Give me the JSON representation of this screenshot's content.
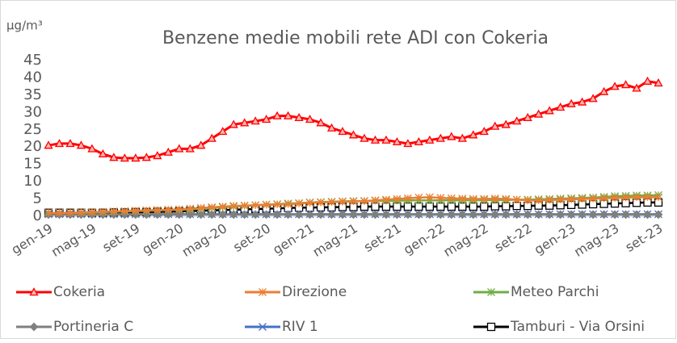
{
  "chart_data": {
    "type": "line",
    "title": "Benzene medie mobili  rete ADI con Cokeria",
    "y_label": "μg/m³",
    "categories": [
      "gen-19",
      null,
      null,
      null,
      "mag-19",
      null,
      null,
      null,
      "set-19",
      null,
      null,
      null,
      "gen-20",
      null,
      null,
      null,
      "mag-20",
      null,
      null,
      null,
      "set-20",
      null,
      null,
      null,
      "gen-21",
      null,
      null,
      null,
      "mag-21",
      null,
      null,
      null,
      "set-21",
      null,
      null,
      null,
      "gen-22",
      null,
      null,
      null,
      "mag-22",
      null,
      null,
      null,
      "set-22",
      null,
      null,
      null,
      "gen-23",
      null,
      null,
      null,
      "mag-23",
      null,
      null,
      null,
      "set-23"
    ],
    "ylim": [
      0,
      45
    ],
    "yticks": [
      0,
      5,
      10,
      15,
      20,
      25,
      30,
      35,
      40,
      45
    ],
    "grid": false,
    "series": [
      {
        "name": "Cokeria",
        "color": "#ff0000",
        "marker": "triangle",
        "values": [
          20.5,
          21,
          21,
          20.5,
          19.5,
          18,
          17,
          16.8,
          16.8,
          17,
          17.5,
          18.5,
          19.5,
          19.5,
          20.5,
          22.5,
          24.5,
          26.5,
          27,
          27.5,
          28,
          29,
          29,
          28.5,
          28,
          27,
          25.5,
          24.5,
          23.5,
          22.5,
          22,
          22,
          21.5,
          21,
          21.5,
          22,
          22.5,
          23,
          22.5,
          23.5,
          24.5,
          26,
          26.5,
          27.5,
          28.5,
          29.5,
          30.5,
          31.5,
          32.5,
          33,
          34,
          36,
          37.5,
          38,
          37,
          39,
          38.5
        ]
      },
      {
        "name": "Direzione",
        "color": "#ed7d31",
        "marker": "star",
        "values": [
          1,
          1,
          1,
          1.1,
          1.2,
          1.3,
          1.4,
          1.5,
          1.6,
          1.7,
          1.8,
          1.9,
          2,
          2.2,
          2.4,
          2.6,
          2.8,
          3,
          3.1,
          3.2,
          3.3,
          3.4,
          3.5,
          3.7,
          3.9,
          4,
          4.1,
          4.2,
          4.3,
          4.4,
          4.6,
          4.8,
          5,
          5.2,
          5.4,
          5.5,
          5.3,
          5.2,
          5.1,
          5,
          5,
          5.1,
          5,
          4.8,
          4.6,
          4.6,
          4.7,
          4.8,
          4.9,
          5,
          5.1,
          5.2,
          5.3,
          5.4,
          5.5,
          5.5,
          5.5
        ]
      },
      {
        "name": "Meteo Parchi",
        "color": "#70ad47",
        "marker": "asterisk",
        "values": [
          1,
          1,
          1,
          1,
          1.1,
          1.2,
          1.3,
          1.4,
          1.5,
          1.6,
          1.7,
          1.8,
          1.9,
          2,
          2.2,
          2.4,
          2.6,
          2.8,
          3,
          3.2,
          3.4,
          3.5,
          3.7,
          3.8,
          4,
          4.1,
          4.2,
          4.3,
          4.4,
          4.4,
          4.5,
          4.5,
          4.5,
          4.6,
          4.6,
          4.6,
          4.6,
          4.6,
          4.6,
          4.6,
          4.7,
          4.7,
          4.7,
          4.8,
          4.8,
          4.9,
          5,
          5.1,
          5.2,
          5.3,
          5.4,
          5.6,
          5.8,
          5.9,
          6,
          6,
          6.1
        ]
      },
      {
        "name": "Portineria C",
        "color": "#7f7f7f",
        "marker": "diamond",
        "values": [
          0.5,
          0.5,
          0.5,
          0.5,
          0.5,
          0.5,
          0.5,
          0.5,
          0.5,
          0.5,
          0.5,
          0.5,
          0.5,
          0.5,
          0.5,
          0.5,
          0.5,
          0.5,
          0.5,
          0.5,
          0.5,
          0.5,
          0.5,
          0.5,
          0.5,
          0.5,
          0.5,
          0.5,
          0.5,
          0.5,
          0.5,
          0.5,
          0.5,
          0.5,
          0.5,
          0.5,
          0.5,
          0.5,
          0.5,
          0.5,
          0.5,
          0.5,
          0.5,
          0.5,
          0.5,
          0.5,
          0.5,
          0.5,
          0.5,
          0.5,
          0.5,
          0.5,
          0.5,
          0.5,
          0.5,
          0.5,
          0.5
        ]
      },
      {
        "name": "RIV 1",
        "color": "#4472c4",
        "marker": "x",
        "values": [
          0.6,
          0.6,
          0.6,
          0.6,
          0.6,
          0.6,
          0.6,
          0.6,
          0.6,
          0.6,
          0.6,
          0.6,
          0.6,
          0.6,
          0.6,
          0.6,
          0.6,
          0.6,
          0.6,
          0.6,
          0.6,
          0.6,
          0.6,
          0.6,
          0.6,
          0.6,
          0.6,
          0.6,
          0.6,
          0.6,
          0.6,
          0.6,
          0.6,
          0.6,
          0.6,
          0.6,
          0.6,
          0.6,
          0.6,
          0.6,
          0.6,
          0.6,
          0.6,
          0.6,
          0.6,
          0.6,
          0.6,
          0.6,
          0.6,
          0.6,
          0.6,
          0.6,
          0.6,
          0.6,
          0.6,
          0.6,
          0.6
        ]
      },
      {
        "name": "Tamburi - Via Orsini",
        "color": "#000000",
        "marker": "square",
        "values": [
          1,
          1,
          1,
          1,
          1,
          1,
          1.1,
          1.1,
          1.2,
          1.2,
          1.3,
          1.3,
          1.4,
          1.5,
          1.6,
          1.7,
          1.8,
          1.9,
          2,
          2.1,
          2.2,
          2.3,
          2.4,
          2.5,
          2.5,
          2.6,
          2.6,
          2.7,
          2.7,
          2.8,
          2.8,
          2.8,
          2.8,
          2.8,
          2.8,
          2.8,
          2.8,
          2.8,
          2.8,
          2.8,
          2.8,
          2.9,
          2.9,
          3,
          3,
          3.1,
          3.1,
          3.2,
          3.3,
          3.4,
          3.5,
          3.6,
          3.7,
          3.8,
          3.9,
          4,
          4
        ]
      }
    ]
  }
}
